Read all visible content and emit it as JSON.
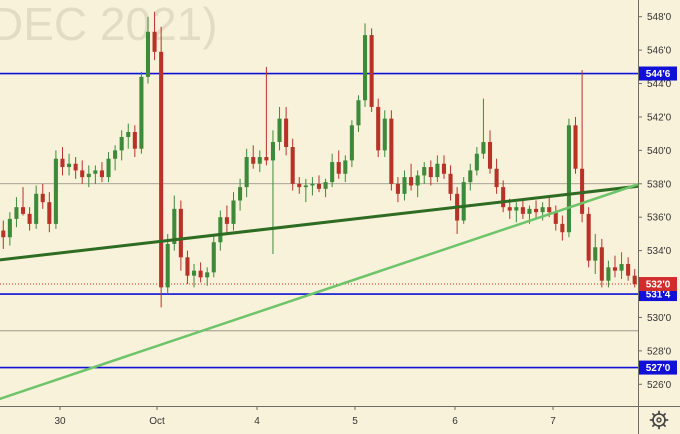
{
  "watermark": "DEC 2021)",
  "gear_icon": "gear-icon",
  "colors": {
    "background": "#f9f2da",
    "up_candle": "#3d8a3a",
    "down_candle": "#b83228",
    "level_line": "#1010d6",
    "dark_trend": "#2e6b23",
    "light_trend": "#6ec46a",
    "price_tag": "#d22d2d"
  },
  "chart_data": {
    "type": "candlestick",
    "title": "",
    "xlabel": "",
    "ylabel": "",
    "ylim": [
      524.7,
      549.0
    ],
    "y_ticks": [
      "526'0",
      "528'0",
      "530'0",
      "532'0",
      "534'0",
      "536'0",
      "538'0",
      "540'0",
      "542'0",
      "544'0",
      "546'0",
      "548'0"
    ],
    "x_ticks": [
      "30",
      "Oct",
      "4",
      "5",
      "6",
      "7"
    ],
    "bars_total": 97,
    "candles": [
      [
        535.2,
        535.8,
        534.1,
        534.8
      ],
      [
        534.8,
        536.3,
        534.3,
        535.9
      ],
      [
        535.9,
        537.2,
        535.4,
        536.6
      ],
      [
        536.6,
        537.8,
        536.1,
        536.2
      ],
      [
        536.2,
        536.6,
        535.2,
        535.6
      ],
      [
        535.6,
        537.9,
        535.3,
        537.4
      ],
      [
        537.4,
        538.0,
        536.5,
        536.9
      ],
      [
        536.9,
        537.5,
        535.1,
        535.6
      ],
      [
        535.6,
        540.0,
        535.3,
        539.5
      ],
      [
        539.5,
        540.2,
        538.5,
        539.0
      ],
      [
        539.0,
        539.8,
        538.5,
        539.2
      ],
      [
        539.2,
        539.6,
        538.3,
        538.8
      ],
      [
        538.8,
        539.4,
        538.0,
        538.4
      ],
      [
        538.4,
        539.1,
        537.8,
        538.6
      ],
      [
        538.6,
        539.1,
        538.0,
        538.8
      ],
      [
        538.8,
        539.3,
        538.1,
        538.4
      ],
      [
        538.4,
        539.9,
        538.1,
        539.5
      ],
      [
        539.5,
        540.3,
        538.8,
        540.0
      ],
      [
        540.0,
        541.2,
        539.4,
        540.8
      ],
      [
        540.8,
        541.6,
        540.1,
        541.1
      ],
      [
        541.1,
        541.5,
        539.6,
        540.1
      ],
      [
        540.1,
        544.7,
        539.8,
        544.4
      ],
      [
        544.4,
        548.0,
        544.0,
        547.1
      ],
      [
        547.1,
        548.3,
        545.4,
        545.9
      ],
      [
        545.9,
        547.4,
        530.6,
        531.8
      ],
      [
        531.8,
        535.0,
        531.4,
        534.4
      ],
      [
        534.4,
        537.3,
        534.0,
        536.5
      ],
      [
        536.5,
        537.0,
        532.8,
        533.6
      ],
      [
        533.6,
        534.0,
        532.0,
        532.5
      ],
      [
        532.5,
        533.2,
        531.8,
        532.8
      ],
      [
        532.8,
        533.3,
        532.1,
        532.4
      ],
      [
        532.4,
        533.0,
        531.9,
        532.7
      ],
      [
        532.7,
        534.9,
        532.4,
        534.5
      ],
      [
        534.5,
        536.4,
        534.0,
        536.0
      ],
      [
        536.0,
        536.7,
        535.0,
        535.6
      ],
      [
        535.6,
        537.5,
        535.2,
        537.0
      ],
      [
        537.0,
        538.3,
        536.4,
        537.8
      ],
      [
        537.8,
        540.1,
        537.2,
        539.6
      ],
      [
        539.6,
        540.3,
        538.9,
        539.2
      ],
      [
        539.2,
        540.0,
        538.7,
        539.6
      ],
      [
        539.6,
        545.0,
        539.1,
        539.4
      ],
      [
        539.4,
        541.2,
        533.8,
        540.5
      ],
      [
        540.5,
        542.6,
        540.0,
        541.9
      ],
      [
        541.9,
        542.6,
        539.7,
        540.2
      ],
      [
        540.2,
        540.7,
        537.6,
        538.0
      ],
      [
        538.0,
        538.4,
        537.4,
        537.8
      ],
      [
        537.8,
        538.3,
        536.9,
        537.9
      ],
      [
        537.9,
        538.4,
        537.3,
        538.0
      ],
      [
        538.0,
        538.5,
        537.5,
        537.7
      ],
      [
        537.7,
        538.3,
        537.2,
        538.1
      ],
      [
        538.1,
        539.8,
        537.8,
        539.3
      ],
      [
        539.3,
        540.0,
        538.3,
        538.6
      ],
      [
        538.6,
        539.7,
        538.1,
        539.4
      ],
      [
        539.4,
        541.8,
        539.0,
        541.5
      ],
      [
        541.5,
        543.3,
        541.1,
        543.0
      ],
      [
        543.0,
        547.6,
        542.6,
        546.9
      ],
      [
        546.9,
        547.3,
        542.3,
        542.6
      ],
      [
        542.6,
        543.1,
        539.6,
        540.0
      ],
      [
        540.0,
        542.4,
        539.6,
        541.9
      ],
      [
        541.9,
        542.4,
        537.6,
        538.0
      ],
      [
        538.0,
        538.4,
        536.9,
        537.4
      ],
      [
        537.4,
        538.8,
        537.0,
        538.4
      ],
      [
        538.4,
        539.2,
        537.6,
        537.9
      ],
      [
        537.9,
        538.8,
        537.2,
        538.5
      ],
      [
        538.5,
        539.3,
        538.0,
        539.0
      ],
      [
        539.0,
        539.4,
        537.9,
        538.4
      ],
      [
        538.4,
        539.7,
        538.1,
        539.2
      ],
      [
        539.2,
        539.7,
        538.3,
        538.6
      ],
      [
        538.6,
        539.1,
        537.0,
        537.4
      ],
      [
        537.4,
        537.8,
        535.0,
        535.8
      ],
      [
        535.8,
        538.4,
        535.6,
        538.1
      ],
      [
        538.1,
        539.2,
        537.6,
        538.8
      ],
      [
        538.8,
        540.2,
        538.5,
        539.8
      ],
      [
        539.8,
        543.1,
        539.5,
        540.5
      ],
      [
        540.5,
        541.2,
        538.6,
        538.9
      ],
      [
        538.9,
        539.5,
        537.4,
        537.8
      ],
      [
        537.8,
        538.2,
        536.3,
        536.6
      ],
      [
        536.6,
        537.1,
        535.9,
        536.4
      ],
      [
        536.4,
        536.9,
        535.7,
        536.6
      ],
      [
        536.6,
        537.0,
        535.9,
        536.2
      ],
      [
        536.2,
        536.7,
        535.6,
        536.5
      ],
      [
        536.5,
        537.0,
        535.9,
        536.3
      ],
      [
        536.3,
        536.9,
        535.8,
        536.6
      ],
      [
        536.6,
        537.2,
        536.0,
        536.3
      ],
      [
        536.3,
        536.7,
        535.2,
        535.6
      ],
      [
        535.6,
        536.1,
        534.6,
        535.1
      ],
      [
        535.1,
        541.9,
        534.8,
        541.5
      ],
      [
        541.5,
        542.0,
        538.6,
        538.9
      ],
      [
        538.9,
        544.8,
        535.7,
        536.2
      ],
      [
        536.2,
        536.6,
        533.0,
        533.4
      ],
      [
        533.4,
        535.0,
        532.6,
        534.2
      ],
      [
        534.2,
        534.7,
        531.8,
        532.2
      ],
      [
        532.2,
        533.4,
        531.8,
        533.0
      ],
      [
        533.0,
        533.7,
        532.4,
        532.8
      ],
      [
        532.8,
        533.9,
        532.3,
        533.2
      ],
      [
        533.2,
        533.6,
        532.2,
        532.5
      ],
      [
        532.5,
        532.9,
        531.8,
        532.0
      ]
    ],
    "horizontal_levels": [
      {
        "value": 544.6,
        "label": "544'6"
      },
      {
        "value": 531.4,
        "label": "531'4"
      },
      {
        "value": 527.0,
        "label": "527'0"
      }
    ],
    "thin_levels": [
      538.0,
      529.2
    ],
    "last_price": {
      "value": 532.0,
      "label": "532'0"
    },
    "trend_lines": [
      {
        "style": "dark",
        "from": [
          -1.5,
          533.4
        ],
        "to": [
          97.5,
          537.9
        ]
      },
      {
        "style": "light",
        "from": [
          -1.5,
          525.0
        ],
        "to": [
          97.5,
          538.1
        ]
      }
    ]
  }
}
